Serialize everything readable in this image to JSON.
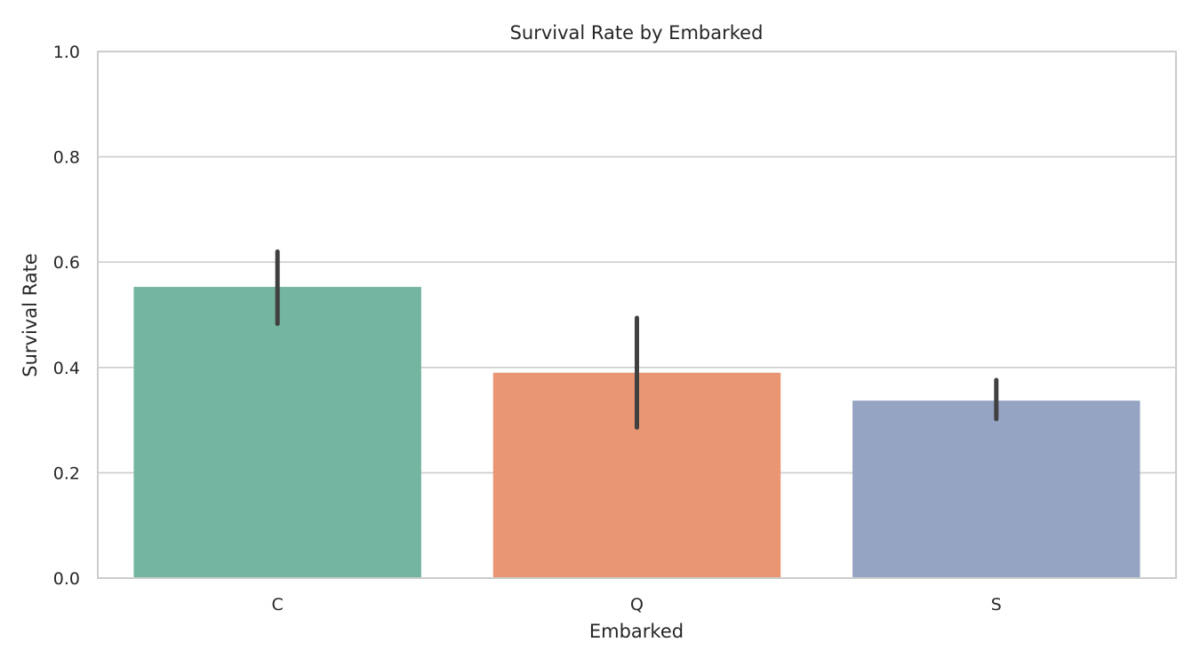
{
  "chart_data": {
    "type": "bar",
    "title": "Survival Rate by Embarked",
    "xlabel": "Embarked",
    "ylabel": "Survival Rate",
    "categories": [
      "C",
      "Q",
      "S"
    ],
    "values": [
      0.553,
      0.39,
      0.337
    ],
    "error_bars": [
      {
        "low": 0.483,
        "high": 0.62
      },
      {
        "low": 0.286,
        "high": 0.494
      },
      {
        "low": 0.302,
        "high": 0.376
      }
    ],
    "colors": [
      "#73b5a0",
      "#e89674",
      "#95a4c3"
    ],
    "error_bar_color": "#404040",
    "ylim": [
      0,
      1.0
    ],
    "yticks": [
      "0.0",
      "0.2",
      "0.4",
      "0.6",
      "0.8",
      "1.0"
    ],
    "grid": true,
    "grid_color": "#cccccc",
    "spine_color": "#cccccc",
    "legend": "none"
  }
}
